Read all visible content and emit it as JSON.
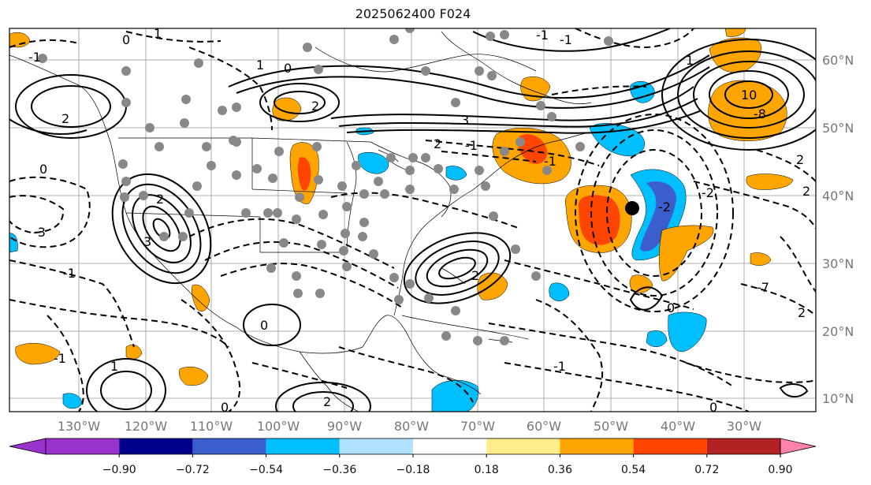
{
  "title": "2025062400 F024",
  "colors": {
    "purple": "#9a32cd",
    "navy": "#00008b",
    "blue": "#3a5fcd",
    "sky": "#00bfff",
    "lightblue": "#b0e2ff",
    "yellow": "#ffec8b",
    "orange": "#ffa500",
    "redorange": "#ff4500",
    "firebrick": "#b22222",
    "pink": "#ff82ab"
  },
  "axes": {
    "lon_labels": [
      "130°W",
      "120°W",
      "110°W",
      "100°W",
      "90°W",
      "80°W",
      "70°W",
      "60°W",
      "50°W",
      "40°W",
      "30°W"
    ],
    "lat_labels": [
      "60°N",
      "50°N",
      "40°N",
      "30°N",
      "20°N",
      "10°N"
    ]
  },
  "colorbar": {
    "ticks": [
      "−0.90",
      "−0.72",
      "−0.54",
      "−0.36",
      "−0.18",
      "0.18",
      "0.36",
      "0.54",
      "0.72",
      "0.90"
    ]
  },
  "contour_labels": [
    "0",
    "1",
    "-1",
    "2",
    "-2",
    "3",
    "-3",
    "10",
    "-8",
    "-7"
  ]
}
